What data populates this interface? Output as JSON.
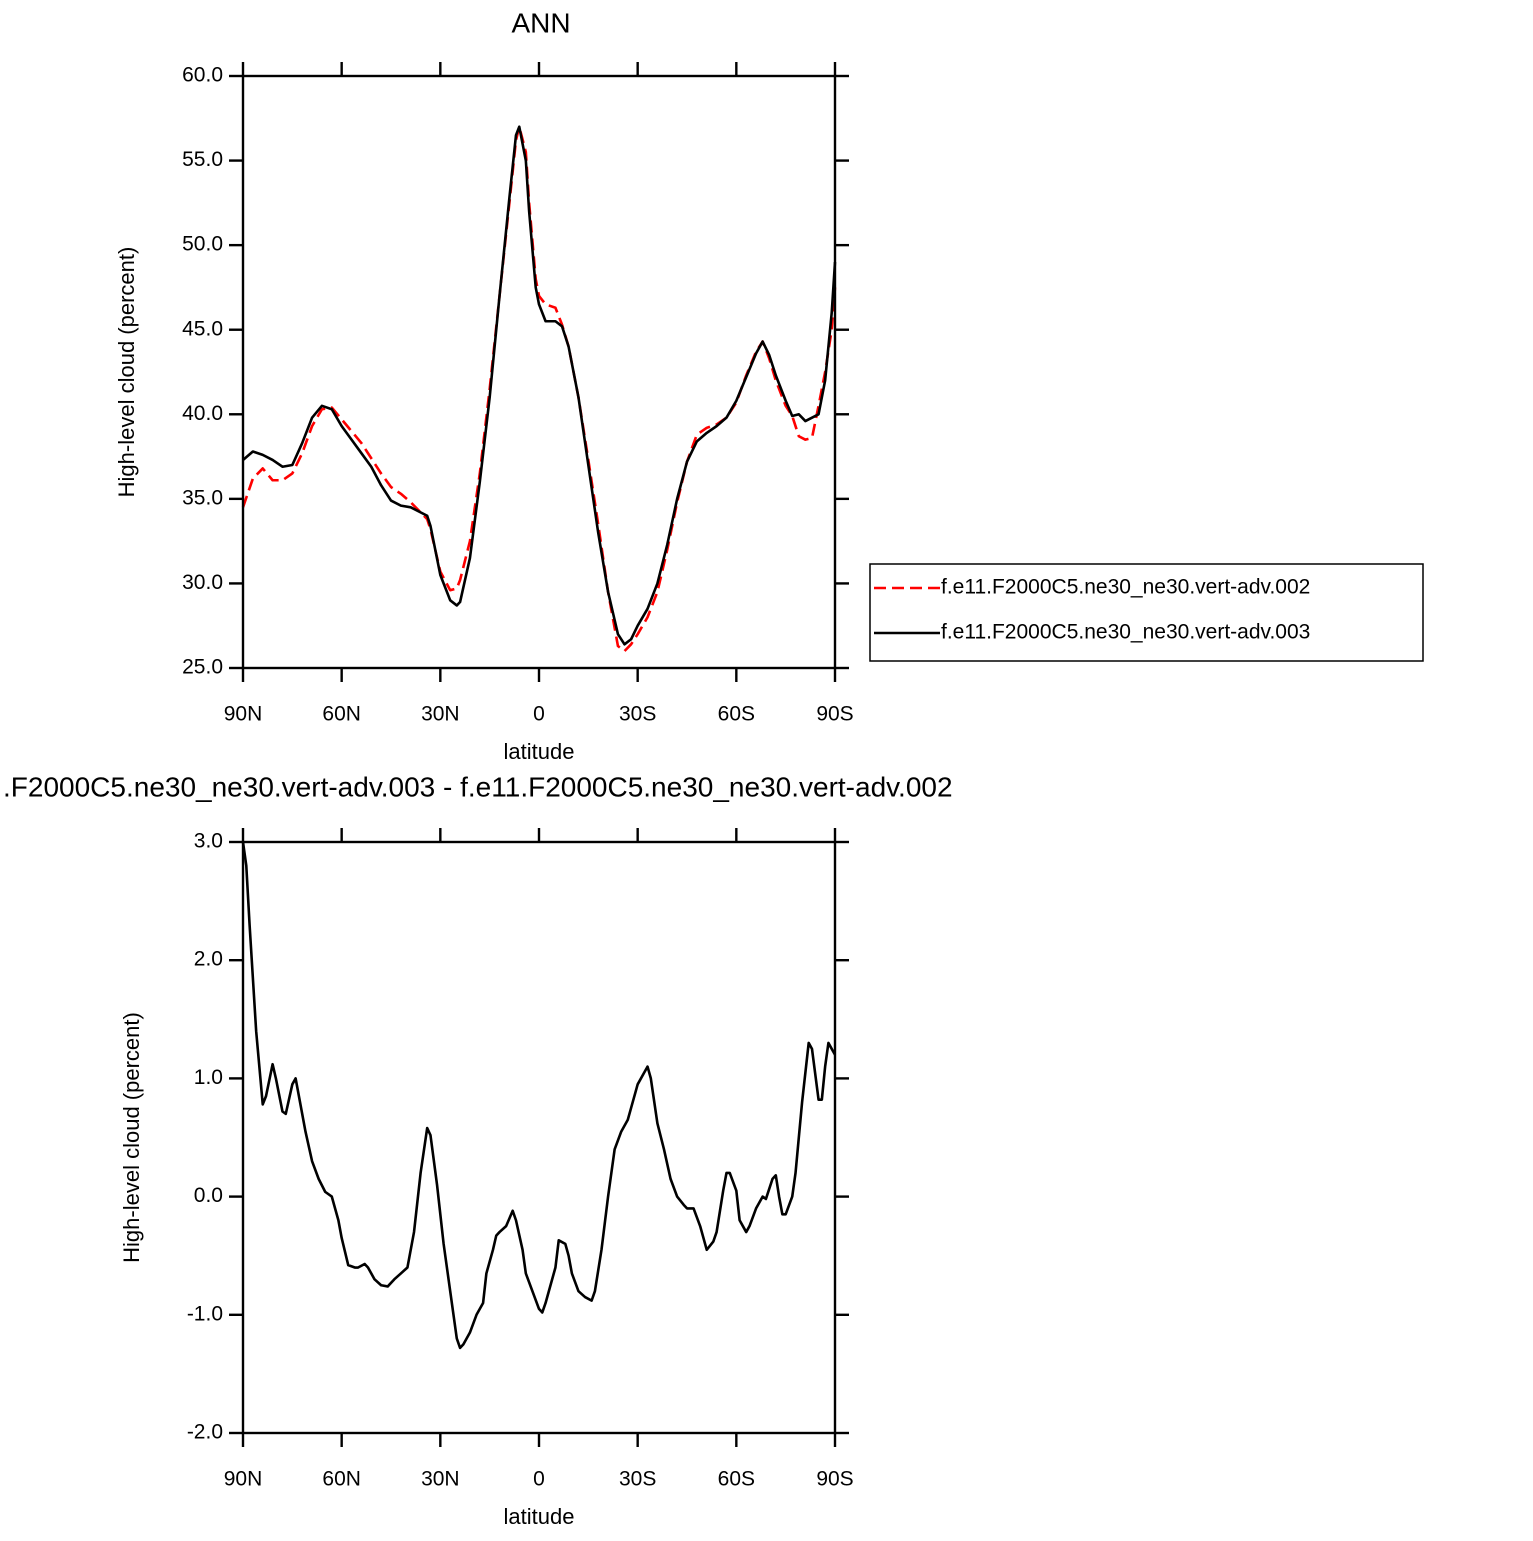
{
  "chart_data": [
    {
      "type": "line",
      "title": "ANN",
      "xlabel": "latitude",
      "ylabel": "High-level cloud (percent)",
      "x": [
        90,
        87,
        84,
        81,
        78,
        75,
        72,
        69,
        66,
        63,
        60,
        57,
        54,
        51,
        48,
        45,
        42,
        39,
        36,
        34,
        33,
        30,
        27,
        25,
        24,
        21,
        18,
        15,
        12,
        9,
        7,
        6,
        4,
        3,
        1,
        0,
        -2,
        -5,
        -7,
        -9,
        -12,
        -15,
        -18,
        -21,
        -24,
        -26,
        -28,
        -30,
        -33,
        -36,
        -39,
        -42,
        -45,
        -48,
        -51,
        -54,
        -57,
        -60,
        -63,
        -66,
        -68,
        -70,
        -72,
        -75,
        -77,
        -79,
        -81,
        -83,
        -85,
        -87,
        -89,
        -90
      ],
      "series": [
        {
          "name": "f.e11.F2000C5.ne30_ne30.vert-adv.002",
          "color": "#ff0000",
          "dashed": true,
          "values": [
            34.5,
            36.2,
            36.8,
            36.1,
            36.1,
            36.5,
            37.7,
            39.3,
            40.3,
            40.4,
            39.7,
            39.0,
            38.3,
            37.4,
            36.5,
            35.7,
            35.3,
            34.8,
            34.2,
            33.8,
            33.2,
            30.7,
            29.6,
            29.7,
            30.2,
            32.5,
            36.5,
            41.5,
            47,
            52.5,
            56.2,
            57.0,
            55.5,
            52.5,
            48,
            47,
            46.5,
            46.3,
            45.3,
            44,
            41,
            37.3,
            33.5,
            29.5,
            26.3,
            26.0,
            26.4,
            27.0,
            28.0,
            29.5,
            32.0,
            34.8,
            37.2,
            38.8,
            39.2,
            39.4,
            39.8,
            40.7,
            42.3,
            43.7,
            44.3,
            43.3,
            42.0,
            40.5,
            39.9,
            38.7,
            38.5,
            38.6,
            40.5,
            42.5,
            45,
            47.5
          ]
        },
        {
          "name": "f.e11.F2000C5.ne30_ne30.vert-adv.003",
          "color": "#000000",
          "dashed": false,
          "values": [
            37.3,
            37.8,
            37.6,
            37.3,
            36.9,
            37.0,
            38.3,
            39.8,
            40.5,
            40.3,
            39.3,
            38.5,
            37.7,
            36.9,
            35.8,
            34.9,
            34.6,
            34.5,
            34.2,
            34.0,
            33.4,
            30.5,
            29.0,
            28.7,
            28.9,
            31.5,
            36,
            41,
            47,
            52.8,
            56.5,
            57.0,
            55,
            52,
            47.5,
            46.5,
            45.5,
            45.5,
            45.2,
            44,
            41,
            37,
            33,
            29.5,
            27,
            26.4,
            26.7,
            27.5,
            28.5,
            30,
            32.3,
            35,
            37.2,
            38.4,
            38.9,
            39.3,
            39.8,
            40.8,
            42.2,
            43.6,
            44.3,
            43.5,
            42.3,
            40.8,
            39.9,
            40.0,
            39.6,
            39.8,
            40.0,
            42,
            46,
            49
          ]
        }
      ],
      "xlim": [
        90,
        -90
      ],
      "xticks": [
        {
          "value": 90,
          "label": "90N"
        },
        {
          "value": 60,
          "label": "60N"
        },
        {
          "value": 30,
          "label": "30N"
        },
        0,
        {
          "value": -30,
          "label": "30S"
        },
        {
          "value": -60,
          "label": "60S"
        },
        {
          "value": -90,
          "label": "90S"
        }
      ],
      "ylim": [
        25,
        60
      ],
      "yticks": [
        {
          "value": 25,
          "label": "25.0"
        },
        {
          "value": 30,
          "label": "30.0"
        },
        {
          "value": 35,
          "label": "35.0"
        },
        {
          "value": 40,
          "label": "40.0"
        },
        {
          "value": 45,
          "label": "45.0"
        },
        {
          "value": 50,
          "label": "50.0"
        },
        {
          "value": 55,
          "label": "55.0"
        },
        {
          "value": 60,
          "label": "60.0"
        }
      ],
      "legend": "right"
    },
    {
      "type": "line",
      "title": ".F2000C5.ne30_ne30.vert-adv.003 - f.e11.F2000C5.ne30_ne30.vert-adv.002",
      "xlabel": "latitude",
      "ylabel": "High-level cloud (percent)",
      "x": [
        90,
        89,
        88,
        86,
        84,
        83,
        81,
        80,
        78,
        77,
        75,
        74,
        73,
        71,
        69,
        67,
        65,
        63,
        61,
        60,
        58,
        56,
        55,
        53,
        52,
        50,
        48,
        46,
        44,
        42,
        40,
        38,
        36,
        34,
        33,
        31,
        29,
        27,
        25,
        24,
        23,
        21,
        19,
        17,
        16,
        14,
        13,
        12,
        10,
        8,
        7,
        5,
        4,
        2,
        0,
        -1,
        -2,
        -3,
        -5,
        -6,
        -8,
        -9,
        -10,
        -12,
        -14,
        -16,
        -17,
        -19,
        -21,
        -23,
        -25,
        -27,
        -28,
        -30,
        -32,
        -33,
        -34,
        -36,
        -38,
        -40,
        -42,
        -44,
        -45,
        -47,
        -49,
        -51,
        -53,
        -54,
        -56,
        -57,
        -58,
        -60,
        -61,
        -63,
        -64,
        -66,
        -68,
        -69,
        -71,
        -72,
        -73,
        -74,
        -75,
        -77,
        -78,
        -80,
        -82,
        -83,
        -85,
        -86,
        -87,
        -88,
        -90
      ],
      "series": [
        {
          "name": null,
          "color": "#000000",
          "dashed": false,
          "values": [
            3.0,
            2.8,
            2.3,
            1.4,
            0.78,
            0.85,
            1.12,
            1.0,
            0.72,
            0.7,
            0.95,
            1.0,
            0.85,
            0.55,
            0.3,
            0.15,
            0.04,
            0.0,
            -0.2,
            -0.35,
            -0.58,
            -0.6,
            -0.6,
            -0.57,
            -0.6,
            -0.7,
            -0.75,
            -0.76,
            -0.7,
            -0.65,
            -0.6,
            -0.3,
            0.2,
            0.58,
            0.52,
            0.1,
            -0.4,
            -0.8,
            -1.2,
            -1.28,
            -1.25,
            -1.15,
            -1.0,
            -0.9,
            -0.65,
            -0.45,
            -0.33,
            -0.3,
            -0.25,
            -0.12,
            -0.2,
            -0.45,
            -0.65,
            -0.8,
            -0.95,
            -0.98,
            -0.9,
            -0.8,
            -0.6,
            -0.37,
            -0.4,
            -0.5,
            -0.65,
            -0.8,
            -0.85,
            -0.88,
            -0.8,
            -0.45,
            0.0,
            0.4,
            0.55,
            0.65,
            0.75,
            0.95,
            1.05,
            1.1,
            1.0,
            0.62,
            0.4,
            0.15,
            0.0,
            -0.07,
            -0.1,
            -0.1,
            -0.25,
            -0.45,
            -0.38,
            -0.3,
            0.05,
            0.2,
            0.2,
            0.05,
            -0.2,
            -0.3,
            -0.25,
            -0.1,
            0.0,
            -0.02,
            0.15,
            0.18,
            0.0,
            -0.15,
            -0.15,
            0.0,
            0.2,
            0.8,
            1.3,
            1.25,
            0.82,
            0.82,
            1.1,
            1.3,
            1.2
          ]
        }
      ],
      "xlim": [
        90,
        -90
      ],
      "xticks": [
        {
          "value": 90,
          "label": "90N"
        },
        {
          "value": 60,
          "label": "60N"
        },
        {
          "value": 30,
          "label": "30N"
        },
        0,
        {
          "value": -30,
          "label": "30S"
        },
        {
          "value": -60,
          "label": "60S"
        },
        {
          "value": -90,
          "label": "90S"
        }
      ],
      "ylim": [
        -2,
        3
      ],
      "yticks": [
        {
          "value": -2,
          "label": "-2.0"
        },
        {
          "value": -1,
          "label": "-1.0"
        },
        {
          "value": 0,
          "label": "0.0"
        },
        {
          "value": 1,
          "label": "1.0"
        },
        {
          "value": 2,
          "label": "2.0"
        },
        {
          "value": 3,
          "label": "3.0"
        }
      ]
    }
  ]
}
